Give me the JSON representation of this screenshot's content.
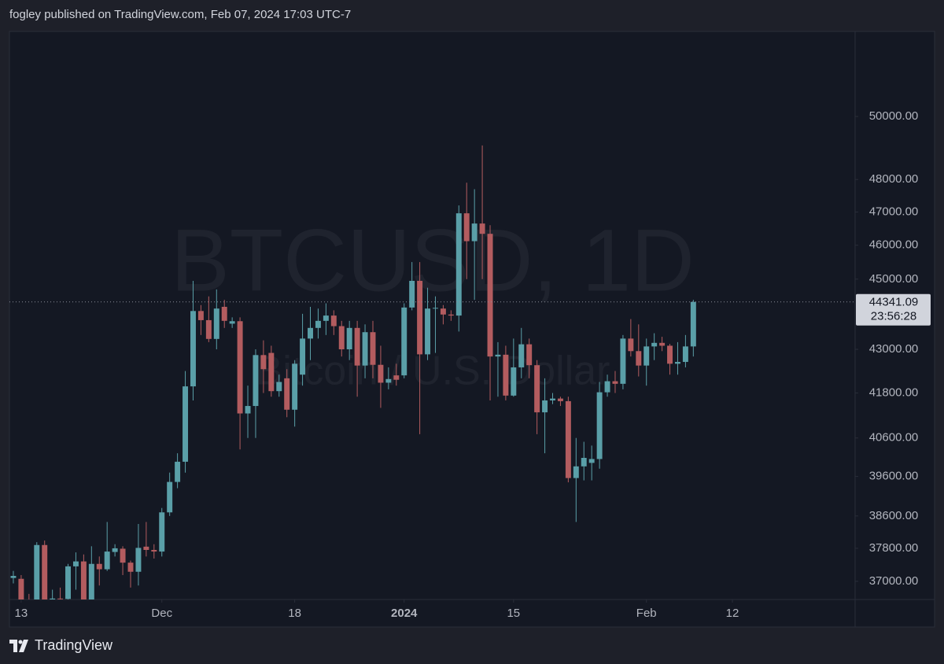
{
  "header": "fogley published on TradingView.com, Feb 07, 2024 17:03 UTC-7",
  "brand": "TradingView",
  "chart_data": {
    "type": "candlestick",
    "symbol": "BTCUSD, 1D",
    "description": "Bitcoin / U.S. Dollar",
    "currency": "USD",
    "log_scale": true,
    "up_color": "#5a9fa8",
    "down_color": "#b35c5f",
    "ylim": [
      36567,
      52830
    ],
    "yticks": [
      {
        "value": 37000,
        "label": "37000.00"
      },
      {
        "value": 37800,
        "label": "37800.00"
      },
      {
        "value": 38600,
        "label": "38600.00"
      },
      {
        "value": 39600,
        "label": "39600.00"
      },
      {
        "value": 40600,
        "label": "40600.00"
      },
      {
        "value": 41800,
        "label": "41800.00"
      },
      {
        "value": 43000,
        "label": "43000.00"
      },
      {
        "value": 45000,
        "label": "45000.00"
      },
      {
        "value": 46000,
        "label": "46000.00"
      },
      {
        "value": 47000,
        "label": "47000.00"
      },
      {
        "value": 48000,
        "label": "48000.00"
      },
      {
        "value": 50000,
        "label": "50000.00"
      }
    ],
    "xlim": [
      -0.5,
      107.7
    ],
    "xticks": [
      {
        "value": 1,
        "label": "13"
      },
      {
        "value": 19,
        "label": "Dec"
      },
      {
        "value": 36,
        "label": "18"
      },
      {
        "value": 50,
        "label": "2024"
      },
      {
        "value": 64,
        "label": "15"
      },
      {
        "value": 81,
        "label": "Feb"
      },
      {
        "value": 92,
        "label": "12"
      }
    ],
    "last_price": 44341.09,
    "countdown": "23:56:28",
    "open": [
      37080,
      37060,
      36480,
      35550,
      37880,
      36160,
      36590,
      36580,
      37360,
      37480,
      35800,
      37420,
      37290,
      37710,
      37790,
      37450,
      37230,
      37840,
      37760,
      37720,
      38690,
      39460,
      39980,
      41980,
      44080,
      43820,
      43290,
      44200,
      43720,
      43790,
      41250,
      41450,
      42840,
      42900,
      41850,
      42200,
      41350,
      42300,
      43300,
      43600,
      43800,
      43950,
      43650,
      43000,
      43600,
      42550,
      43480,
      42570,
      42080,
      42280,
      42280,
      44180,
      44950,
      42860,
      44150,
      44150,
      43980,
      43950,
      46960,
      46120,
      46650,
      46340,
      42800,
      42850,
      41730,
      42500,
      43140,
      42560,
      41280,
      41600,
      41650,
      41580,
      39560,
      39860,
      39950,
      40050,
      41820,
      42120,
      42050,
      43300,
      42950,
      42550,
      43080,
      43180,
      43100,
      42600,
      42650,
      43080
    ],
    "high": [
      37250,
      37150,
      36700,
      37950,
      37990,
      36800,
      36850,
      37420,
      37700,
      37650,
      37850,
      37600,
      38450,
      37900,
      37850,
      37500,
      38400,
      38450,
      37900,
      38800,
      39700,
      40200,
      42400,
      44950,
      44250,
      44500,
      44700,
      44400,
      43900,
      43900,
      42000,
      43000,
      43250,
      43100,
      42300,
      42450,
      42700,
      44000,
      44200,
      44150,
      44300,
      44100,
      43800,
      43800,
      43800,
      43700,
      43800,
      43100,
      42500,
      42600,
      44300,
      45500,
      45500,
      44750,
      44500,
      44250,
      44100,
      47200,
      47900,
      47700,
      49070,
      46600,
      43200,
      43100,
      43300,
      43600,
      43300,
      42700,
      42200,
      41800,
      41700,
      41700,
      40600,
      40500,
      40400,
      42100,
      42300,
      42400,
      43400,
      43850,
      43700,
      43300,
      43450,
      43350,
      43150,
      43200,
      43400,
      44400
    ],
    "low": [
      36950,
      36300,
      35500,
      35400,
      35800,
      35900,
      36200,
      36400,
      36800,
      35700,
      35650,
      36900,
      37250,
      37600,
      37150,
      36850,
      36900,
      37600,
      37550,
      37600,
      38600,
      39300,
      39700,
      41600,
      43400,
      43200,
      43000,
      43600,
      43600,
      40300,
      40600,
      40600,
      41800,
      41700,
      41700,
      41150,
      40900,
      42000,
      42700,
      43300,
      43400,
      43400,
      42800,
      42700,
      41700,
      42200,
      42200,
      41400,
      41900,
      42000,
      42200,
      44100,
      40700,
      42700,
      42900,
      43700,
      43800,
      43500,
      45000,
      44400,
      45000,
      41600,
      41700,
      41600,
      41700,
      42200,
      42200,
      40700,
      40200,
      41500,
      41450,
      39450,
      38450,
      39500,
      39500,
      39800,
      41700,
      41800,
      41900,
      42800,
      42250,
      42000,
      42700,
      42950,
      42300,
      42300,
      42500,
      42800
    ],
    "close": [
      37130,
      36480,
      35550,
      37880,
      36160,
      36590,
      36580,
      37360,
      37480,
      35800,
      37420,
      37290,
      37720,
      37800,
      37450,
      37230,
      37810,
      37760,
      37720,
      38690,
      39460,
      39980,
      41980,
      44080,
      43820,
      43290,
      44150,
      43800,
      43790,
      41250,
      41450,
      42840,
      42450,
      41850,
      42100,
      41350,
      42600,
      43300,
      43600,
      43800,
      43950,
      43650,
      43000,
      43600,
      42550,
      43480,
      42570,
      42080,
      42180,
      42160,
      44180,
      44950,
      42860,
      44150,
      44170,
      43980,
      43950,
      46960,
      46120,
      46650,
      46340,
      42800,
      42850,
      41730,
      42500,
      43140,
      42560,
      41280,
      41600,
      41650,
      41580,
      39560,
      39860,
      40080,
      40050,
      41820,
      42120,
      42050,
      43300,
      42950,
      42550,
      43080,
      43180,
      43100,
      42600,
      42650,
      43080,
      44341.09
    ]
  }
}
